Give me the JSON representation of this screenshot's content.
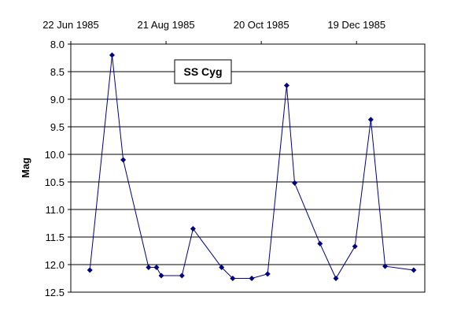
{
  "chart_data": {
    "type": "line",
    "title": "",
    "xlabel": "",
    "ylabel": "Mag",
    "x_ticks": [
      "22 Jun 1985",
      "21 Aug 1985",
      "20 Oct 1985",
      "19 Dec 1985"
    ],
    "xlim": [
      "1985-06-22",
      "1986-01-31"
    ],
    "ylim": [
      8.0,
      12.5
    ],
    "y_inverted": true,
    "y_ticks": [
      "8.0",
      "8.5",
      "9.0",
      "9.5",
      "10.0",
      "10.5",
      "11.0",
      "11.5",
      "12.0",
      "12.5"
    ],
    "grid": "horizontal",
    "series": [
      {
        "name": "SS Cyg",
        "color": "#000080",
        "marker": "diamond",
        "points": [
          {
            "x": "1985-07-04",
            "y": 12.1
          },
          {
            "x": "1985-07-18",
            "y": 8.2
          },
          {
            "x": "1985-07-25",
            "y": 10.1
          },
          {
            "x": "1985-08-10",
            "y": 12.05
          },
          {
            "x": "1985-08-15",
            "y": 12.05
          },
          {
            "x": "1985-08-18",
            "y": 12.2
          },
          {
            "x": "1985-08-31",
            "y": 12.2
          },
          {
            "x": "1985-09-07",
            "y": 11.35
          },
          {
            "x": "1985-09-25",
            "y": 12.05
          },
          {
            "x": "1985-10-02",
            "y": 12.25
          },
          {
            "x": "1985-10-14",
            "y": 12.25
          },
          {
            "x": "1985-10-24",
            "y": 12.17
          },
          {
            "x": "1985-11-05",
            "y": 8.75
          },
          {
            "x": "1985-11-10",
            "y": 10.52
          },
          {
            "x": "1985-11-26",
            "y": 11.62
          },
          {
            "x": "1985-12-06",
            "y": 12.25
          },
          {
            "x": "1985-12-18",
            "y": 11.67
          },
          {
            "x": "1985-12-28",
            "y": 9.37
          },
          {
            "x": "1986-01-06",
            "y": 12.03
          },
          {
            "x": "1986-01-24",
            "y": 12.1
          }
        ]
      }
    ],
    "legend": {
      "text": "SS Cyg",
      "position": "top-left inside plot"
    }
  }
}
